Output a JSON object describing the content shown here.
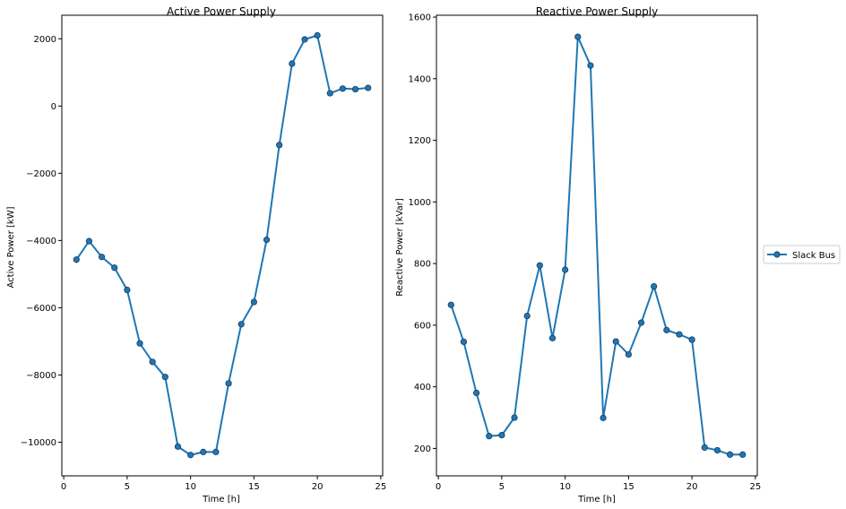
{
  "colors": {
    "series": "#1f77b4",
    "marker_edge": "#1a3a5c",
    "axis": "#000000",
    "background": "#ffffff"
  },
  "legend": {
    "label": "Slack Bus",
    "placement": "right-center"
  },
  "chart_data": [
    {
      "type": "line",
      "title": "Active Power Supply",
      "xlabel": "Time [h]",
      "ylabel": "Active Power [kW]",
      "xlim": [
        -0.15,
        25.15
      ],
      "ylim": [
        -11000,
        2700
      ],
      "xticks": [
        0,
        5,
        10,
        15,
        20,
        25
      ],
      "yticks": [
        -10000,
        -8000,
        -6000,
        -4000,
        -2000,
        0,
        2000
      ],
      "grid": false,
      "series": [
        {
          "name": "Slack Bus",
          "x": [
            1,
            2,
            3,
            4,
            5,
            6,
            7,
            8,
            9,
            10,
            11,
            12,
            13,
            14,
            15,
            16,
            17,
            18,
            19,
            20,
            21,
            22,
            23,
            24
          ],
          "y": [
            -4570,
            -4020,
            -4490,
            -4810,
            -5470,
            -7060,
            -7610,
            -8060,
            -10130,
            -10380,
            -10290,
            -10290,
            -8250,
            -6490,
            -5830,
            -3980,
            -1160,
            1260,
            1980,
            2100,
            380,
            520,
            500,
            540
          ]
        }
      ]
    },
    {
      "type": "line",
      "title": "Reactive Power Supply",
      "xlabel": "Time [h]",
      "ylabel": "Reactive Power [kVar]",
      "xlim": [
        -0.15,
        25.15
      ],
      "ylim": [
        111,
        1606
      ],
      "xticks": [
        0,
        5,
        10,
        15,
        20,
        25
      ],
      "yticks": [
        200,
        400,
        600,
        800,
        1000,
        1200,
        1400,
        1600
      ],
      "grid": false,
      "series": [
        {
          "name": "Slack Bus",
          "x": [
            1,
            2,
            3,
            4,
            5,
            6,
            7,
            8,
            9,
            10,
            11,
            12,
            13,
            14,
            15,
            16,
            17,
            18,
            19,
            20,
            21,
            22,
            23,
            24
          ],
          "y": [
            666,
            546,
            380,
            240,
            243,
            300,
            630,
            794,
            558,
            780,
            1536,
            1443,
            299,
            547,
            505,
            608,
            726,
            584,
            570,
            553,
            203,
            194,
            180,
            180
          ]
        }
      ]
    }
  ]
}
